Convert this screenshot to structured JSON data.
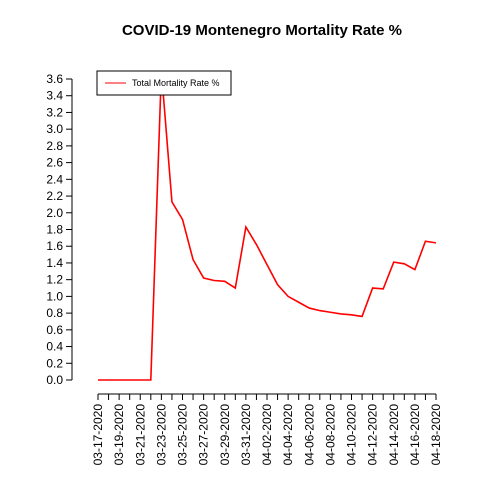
{
  "chart_data": {
    "type": "line",
    "title": "COVID-19 Montenegro Mortality Rate %",
    "xlabel": "",
    "ylabel": "",
    "ylim": [
      0,
      3.6
    ],
    "y_ticks": [
      "0.0",
      "0.2",
      "0.4",
      "0.6",
      "0.8",
      "1.0",
      "1.2",
      "1.4",
      "1.6",
      "1.8",
      "2.0",
      "2.2",
      "2.4",
      "2.6",
      "2.8",
      "3.0",
      "3.2",
      "3.4",
      "3.6"
    ],
    "x_ticks": [
      "03-17-2020",
      "03-19-2020",
      "03-21-2020",
      "03-23-2020",
      "03-25-2020",
      "03-27-2020",
      "03-29-2020",
      "03-31-2020",
      "04-02-2020",
      "04-04-2020",
      "04-06-2020",
      "04-08-2020",
      "04-10-2020",
      "04-12-2020",
      "04-14-2020",
      "04-16-2020",
      "04-18-2020"
    ],
    "x": [
      "03-17-2020",
      "03-18-2020",
      "03-19-2020",
      "03-20-2020",
      "03-21-2020",
      "03-22-2020",
      "03-23-2020",
      "03-24-2020",
      "03-25-2020",
      "03-26-2020",
      "03-27-2020",
      "03-28-2020",
      "03-29-2020",
      "03-30-2020",
      "03-31-2020",
      "04-01-2020",
      "04-02-2020",
      "04-03-2020",
      "04-04-2020",
      "04-05-2020",
      "04-06-2020",
      "04-07-2020",
      "04-08-2020",
      "04-09-2020",
      "04-10-2020",
      "04-11-2020",
      "04-12-2020",
      "04-13-2020",
      "04-14-2020",
      "04-15-2020",
      "04-16-2020",
      "04-17-2020",
      "04-18-2020"
    ],
    "series": [
      {
        "name": "Total Mortality Rate %",
        "color": "#ff0000",
        "values": [
          0,
          0,
          0,
          0,
          0,
          0,
          3.7,
          2.13,
          1.92,
          1.44,
          1.22,
          1.19,
          1.18,
          1.1,
          1.83,
          1.62,
          1.38,
          1.14,
          1.0,
          0.93,
          0.86,
          0.83,
          0.81,
          0.79,
          0.78,
          0.76,
          1.1,
          1.09,
          1.41,
          1.39,
          1.32,
          1.66,
          1.64
        ]
      }
    ],
    "grid": false,
    "legend_position": "top-left"
  }
}
